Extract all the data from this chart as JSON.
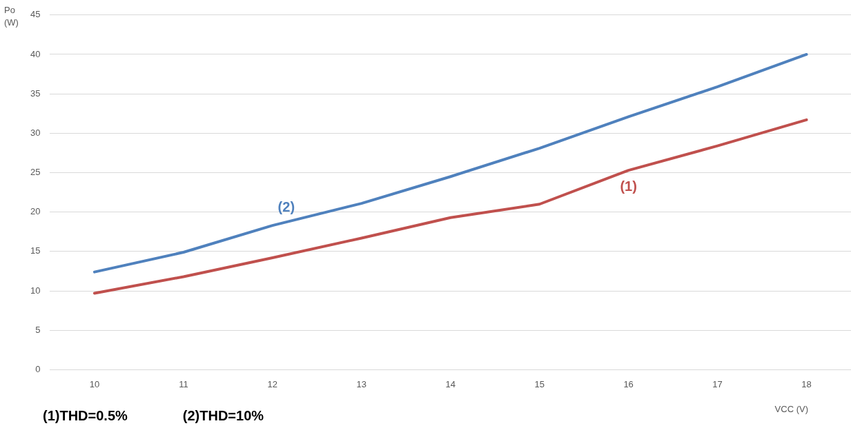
{
  "chart_data": {
    "type": "line",
    "ylabel": "Po\n(W)",
    "xlabel": "VCC (V)",
    "categories": [
      "10",
      "11",
      "12",
      "13",
      "14",
      "15",
      "16",
      "17",
      "18"
    ],
    "series": [
      {
        "name": "(1)",
        "color": "#c0504d",
        "values": [
          9.7,
          11.8,
          14.2,
          16.7,
          19.3,
          21.0,
          25.3,
          28.4,
          31.7
        ]
      },
      {
        "name": "(2)",
        "color": "#4f81bd",
        "values": [
          12.4,
          14.9,
          18.3,
          21.1,
          24.5,
          28.1,
          32.1,
          35.9,
          40.0
        ]
      }
    ],
    "ylim": [
      0,
      45
    ],
    "yticks": [
      0,
      5,
      10,
      15,
      20,
      25,
      30,
      35,
      40,
      45
    ],
    "grid": "y",
    "legend": false,
    "marker": "none",
    "line_style": "solid",
    "annotations": [
      "(1)THD=0.5%",
      "(2)THD=10%"
    ]
  }
}
